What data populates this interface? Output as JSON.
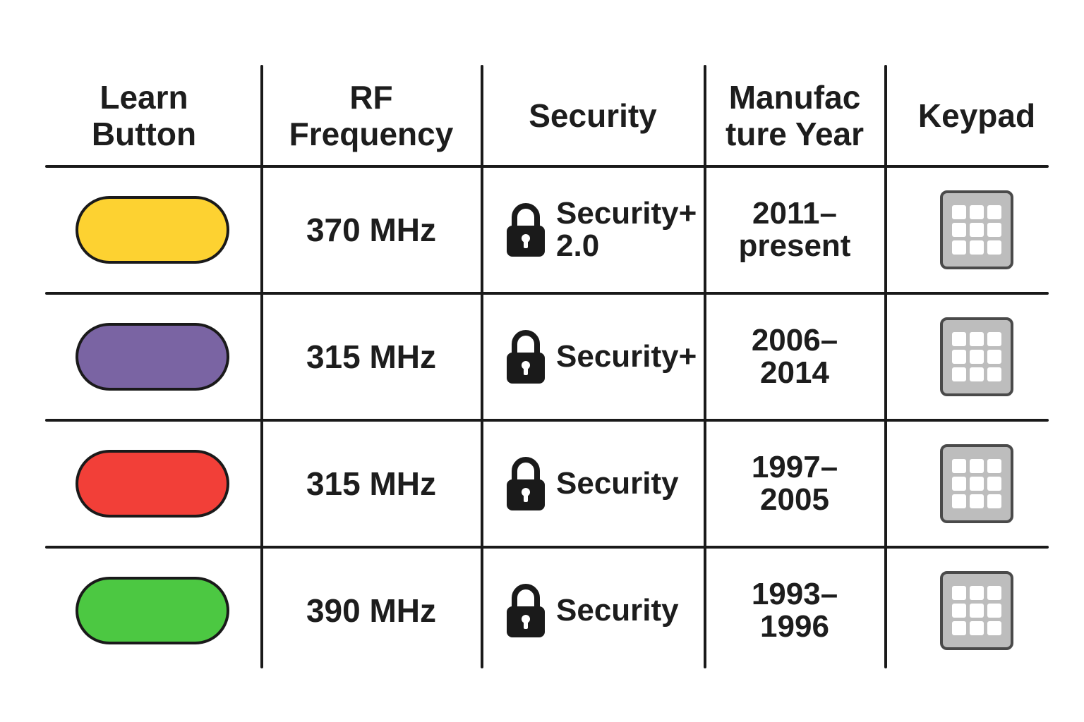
{
  "table": {
    "headers": [
      "Learn\nButton",
      "RF\nFrequency",
      "Security",
      "Manufac\nture Year",
      "Keypad"
    ],
    "rows": [
      {
        "learn_button_color": "#fdd231",
        "frequency": "370 MHz",
        "security": "Security+\n2.0",
        "years": "2011–\npresent",
        "keypad_icon": "keypad-icon"
      },
      {
        "learn_button_color": "#7a64a3",
        "frequency": "315 MHz",
        "security": "Security+",
        "years": "2006–\n2014",
        "keypad_icon": "keypad-icon"
      },
      {
        "learn_button_color": "#f23f38",
        "frequency": "315 MHz",
        "security": "Security",
        "years": "1997–\n2005",
        "keypad_icon": "keypad-icon"
      },
      {
        "learn_button_color": "#4cc842",
        "frequency": "390 MHz",
        "security": "Security",
        "years": "1993–\n1996",
        "keypad_icon": "keypad-icon"
      }
    ]
  },
  "icons": {
    "security": "lock-icon",
    "keypad": "keypad-icon"
  }
}
